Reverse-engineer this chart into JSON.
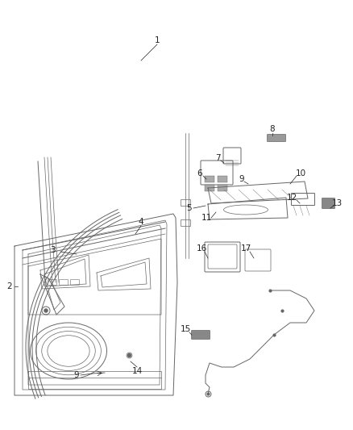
{
  "bg_color": "#ffffff",
  "line_color": "#666666",
  "label_color": "#222222",
  "fig_width": 4.38,
  "fig_height": 5.33,
  "dpi": 100,
  "label_fontsize": 7.5
}
